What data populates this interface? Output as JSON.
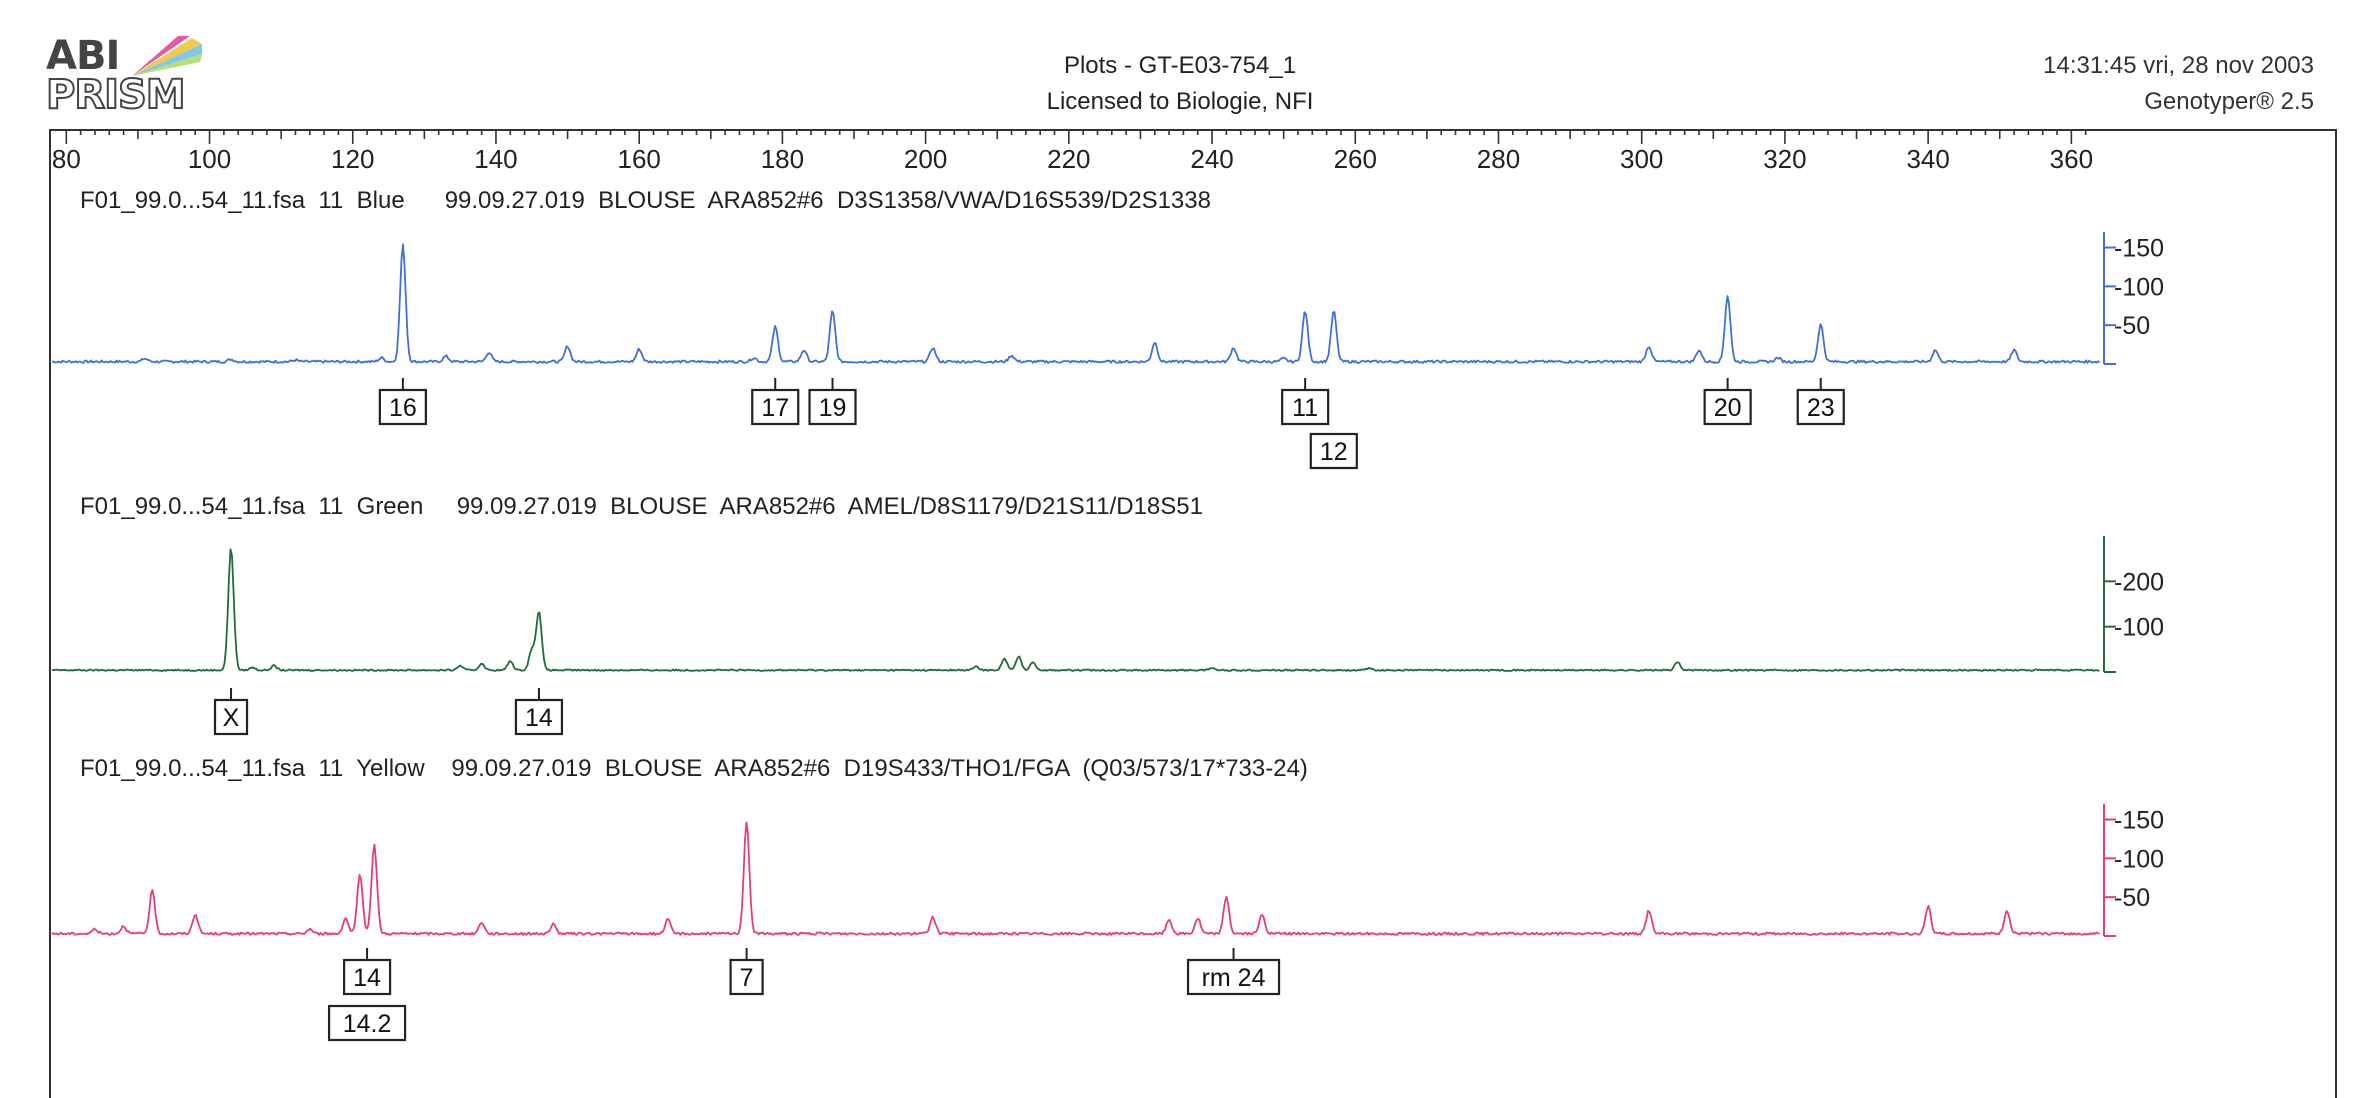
{
  "header": {
    "logo_line1": "ABI",
    "logo_line2": "PRISM",
    "title": "Plots  -  GT-E03-754_1",
    "license": "Licensed to Biologie, NFI",
    "timestamp": "14:31:45  vri,  28  nov  2003",
    "software": "Genotyper®  2.5"
  },
  "colors": {
    "blue": "#3f6fd8",
    "green": "#1f6a3e",
    "yellow": "#e83c78",
    "frame": "#333333"
  },
  "chart_data": {
    "type": "line",
    "x_axis": {
      "range": [
        78,
        364
      ],
      "ticks": [
        80,
        100,
        120,
        140,
        160,
        180,
        200,
        220,
        240,
        260,
        280,
        300,
        320,
        340,
        360
      ],
      "tick_labels": [
        "80",
        "100",
        "120",
        "140",
        "160",
        "180",
        "200",
        "220",
        "240",
        "260",
        "280",
        "300",
        "320",
        "340",
        "360"
      ]
    },
    "panels": [
      {
        "label": "F01_99.0...54_11.fsa  11  Blue      99.09.27.019  BLOUSE  ARA852#6  D3S1358/VWA/D16S539/D2S1338",
        "color": "blue",
        "y_max": 170,
        "y_ticks": [
          50,
          100,
          150
        ],
        "y_tick_labels": [
          "50",
          "100",
          "150"
        ],
        "baseline": 3,
        "peaks": [
          {
            "x": 91,
            "h": 4
          },
          {
            "x": 103,
            "h": 3
          },
          {
            "x": 112,
            "h": 2
          },
          {
            "x": 124,
            "h": 5
          },
          {
            "x": 127,
            "h": 150
          },
          {
            "x": 133,
            "h": 7
          },
          {
            "x": 139,
            "h": 12
          },
          {
            "x": 150,
            "h": 20
          },
          {
            "x": 160,
            "h": 16
          },
          {
            "x": 176,
            "h": 5
          },
          {
            "x": 179,
            "h": 45
          },
          {
            "x": 183,
            "h": 15
          },
          {
            "x": 187,
            "h": 65
          },
          {
            "x": 201,
            "h": 18
          },
          {
            "x": 212,
            "h": 8
          },
          {
            "x": 232,
            "h": 25
          },
          {
            "x": 243,
            "h": 18
          },
          {
            "x": 250,
            "h": 4
          },
          {
            "x": 253,
            "h": 65
          },
          {
            "x": 257,
            "h": 65
          },
          {
            "x": 301,
            "h": 20
          },
          {
            "x": 308,
            "h": 15
          },
          {
            "x": 312,
            "h": 85
          },
          {
            "x": 319,
            "h": 5
          },
          {
            "x": 325,
            "h": 48
          },
          {
            "x": 341,
            "h": 15
          },
          {
            "x": 352,
            "h": 15
          }
        ],
        "labels": [
          {
            "x": 127,
            "text": "16",
            "row": 0
          },
          {
            "x": 179,
            "text": "17",
            "row": 0
          },
          {
            "x": 187,
            "text": "19",
            "row": 0
          },
          {
            "x": 253,
            "text": "11",
            "row": 0
          },
          {
            "x": 257,
            "text": "12",
            "row": 1
          },
          {
            "x": 312,
            "text": "20",
            "row": 0
          },
          {
            "x": 325,
            "text": "23",
            "row": 0
          }
        ]
      },
      {
        "label": "F01_99.0...54_11.fsa  11  Green     99.09.27.019  BLOUSE  ARA852#6  AMEL/D8S1179/D21S11/D18S51",
        "color": "green",
        "y_max": 300,
        "y_ticks": [
          100,
          200
        ],
        "y_tick_labels": [
          "100",
          "200"
        ],
        "baseline": 4,
        "peaks": [
          {
            "x": 103,
            "h": 270
          },
          {
            "x": 106,
            "h": 6
          },
          {
            "x": 109,
            "h": 10
          },
          {
            "x": 135,
            "h": 10
          },
          {
            "x": 138,
            "h": 15
          },
          {
            "x": 142,
            "h": 20
          },
          {
            "x": 145,
            "h": 45
          },
          {
            "x": 146,
            "h": 130
          },
          {
            "x": 207,
            "h": 8
          },
          {
            "x": 211,
            "h": 25
          },
          {
            "x": 213,
            "h": 30
          },
          {
            "x": 215,
            "h": 18
          },
          {
            "x": 240,
            "h": 5
          },
          {
            "x": 262,
            "h": 4
          },
          {
            "x": 305,
            "h": 18
          }
        ],
        "labels": [
          {
            "x": 103,
            "text": "X",
            "row": 0
          },
          {
            "x": 146,
            "text": "14",
            "row": 0
          }
        ]
      },
      {
        "label": "F01_99.0...54_11.fsa  11  Yellow    99.09.27.019  BLOUSE  ARA852#6  D19S433/THO1/FGA  (Q03/573/17*733-24)",
        "color": "yellow",
        "y_max": 170,
        "y_ticks": [
          50,
          100,
          150
        ],
        "y_tick_labels": [
          "50",
          "100",
          "150"
        ],
        "baseline": 3,
        "peaks": [
          {
            "x": 84,
            "h": 6
          },
          {
            "x": 88,
            "h": 10
          },
          {
            "x": 92,
            "h": 55
          },
          {
            "x": 98,
            "h": 25
          },
          {
            "x": 114,
            "h": 6
          },
          {
            "x": 119,
            "h": 20
          },
          {
            "x": 121,
            "h": 75
          },
          {
            "x": 123,
            "h": 115
          },
          {
            "x": 138,
            "h": 15
          },
          {
            "x": 148,
            "h": 12
          },
          {
            "x": 164,
            "h": 18
          },
          {
            "x": 175,
            "h": 145
          },
          {
            "x": 201,
            "h": 22
          },
          {
            "x": 234,
            "h": 18
          },
          {
            "x": 238,
            "h": 20
          },
          {
            "x": 242,
            "h": 48
          },
          {
            "x": 247,
            "h": 25
          },
          {
            "x": 301,
            "h": 30
          },
          {
            "x": 340,
            "h": 35
          },
          {
            "x": 351,
            "h": 30
          }
        ],
        "labels": [
          {
            "x": 122,
            "text": "14",
            "row": 0
          },
          {
            "x": 122,
            "text": "14.2",
            "row": 1
          },
          {
            "x": 175,
            "text": "7",
            "row": 0
          },
          {
            "x": 243,
            "text": "rm 24",
            "row": 0
          }
        ]
      }
    ]
  }
}
